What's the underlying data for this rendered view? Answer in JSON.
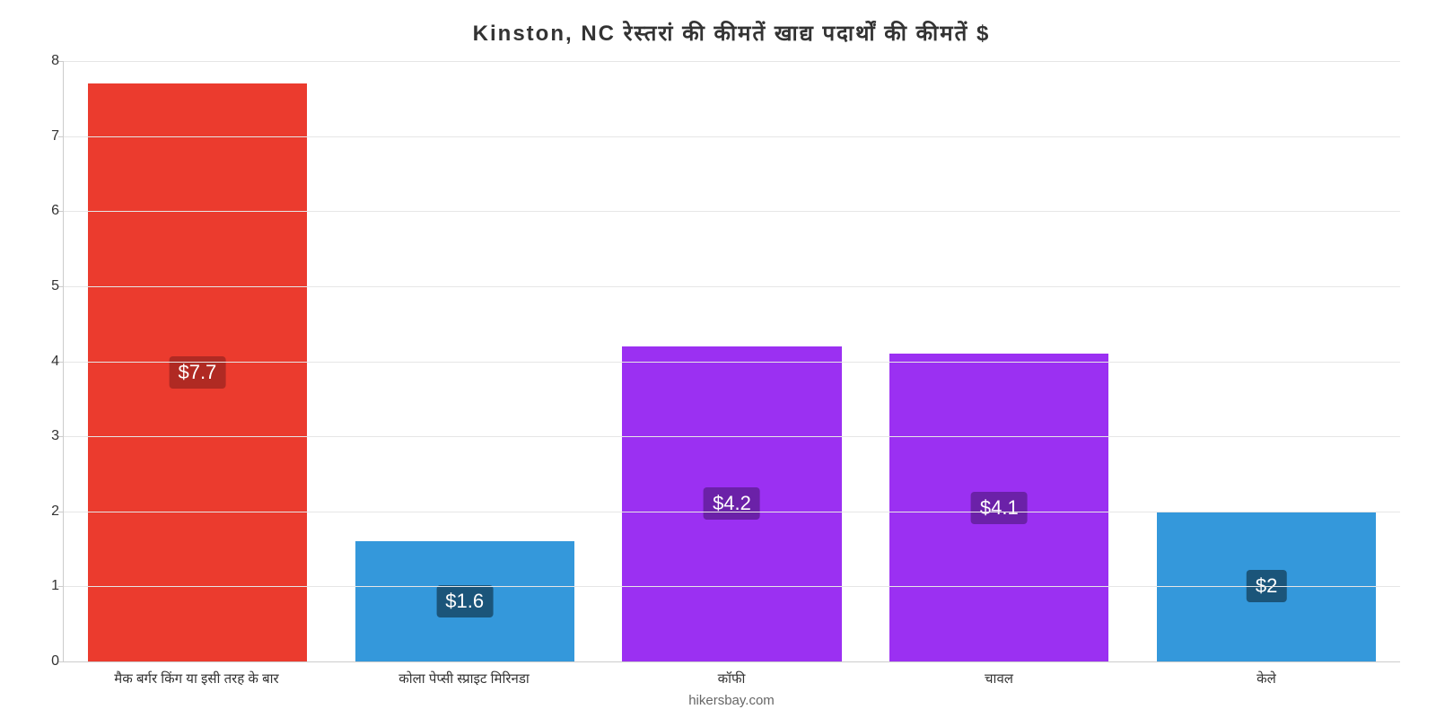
{
  "chart": {
    "type": "bar",
    "title": "Kinston, NC रेस्तरां    की    कीमतें    खाद्य    पदार्थों    की    कीमतें    $",
    "title_fontsize": 24,
    "title_color": "#333333",
    "background_color": "#ffffff",
    "grid_color": "#e6e6e6",
    "axis_color": "#cccccc",
    "text_color": "#333333",
    "ylim_min": 0,
    "ylim_max": 8,
    "ytick_step": 1,
    "ytick_fontsize": 16,
    "xlabel_fontsize": 15,
    "bar_width_ratio": 0.82,
    "value_label_fontsize": 22,
    "categories": [
      "मैक बर्गर किंग या इसी तरह के बार",
      "कोला पेप्सी स्प्राइट मिरिनडा",
      "कॉफी",
      "चावल",
      "केले"
    ],
    "values": [
      7.7,
      1.6,
      4.2,
      4.1,
      2
    ],
    "value_labels": [
      "$7.7",
      "$1.6",
      "$4.2",
      "$4.1",
      "$2"
    ],
    "bar_colors": [
      "#eb3b2e",
      "#3498db",
      "#9b30f2",
      "#9b30f2",
      "#3498db"
    ],
    "label_bg_colors": [
      "#b02a23",
      "#1b557a",
      "#6b21a8",
      "#6b21a8",
      "#1b557a"
    ],
    "footer": "hikersbay.com",
    "footer_color": "#666666",
    "footer_fontsize": 15
  }
}
